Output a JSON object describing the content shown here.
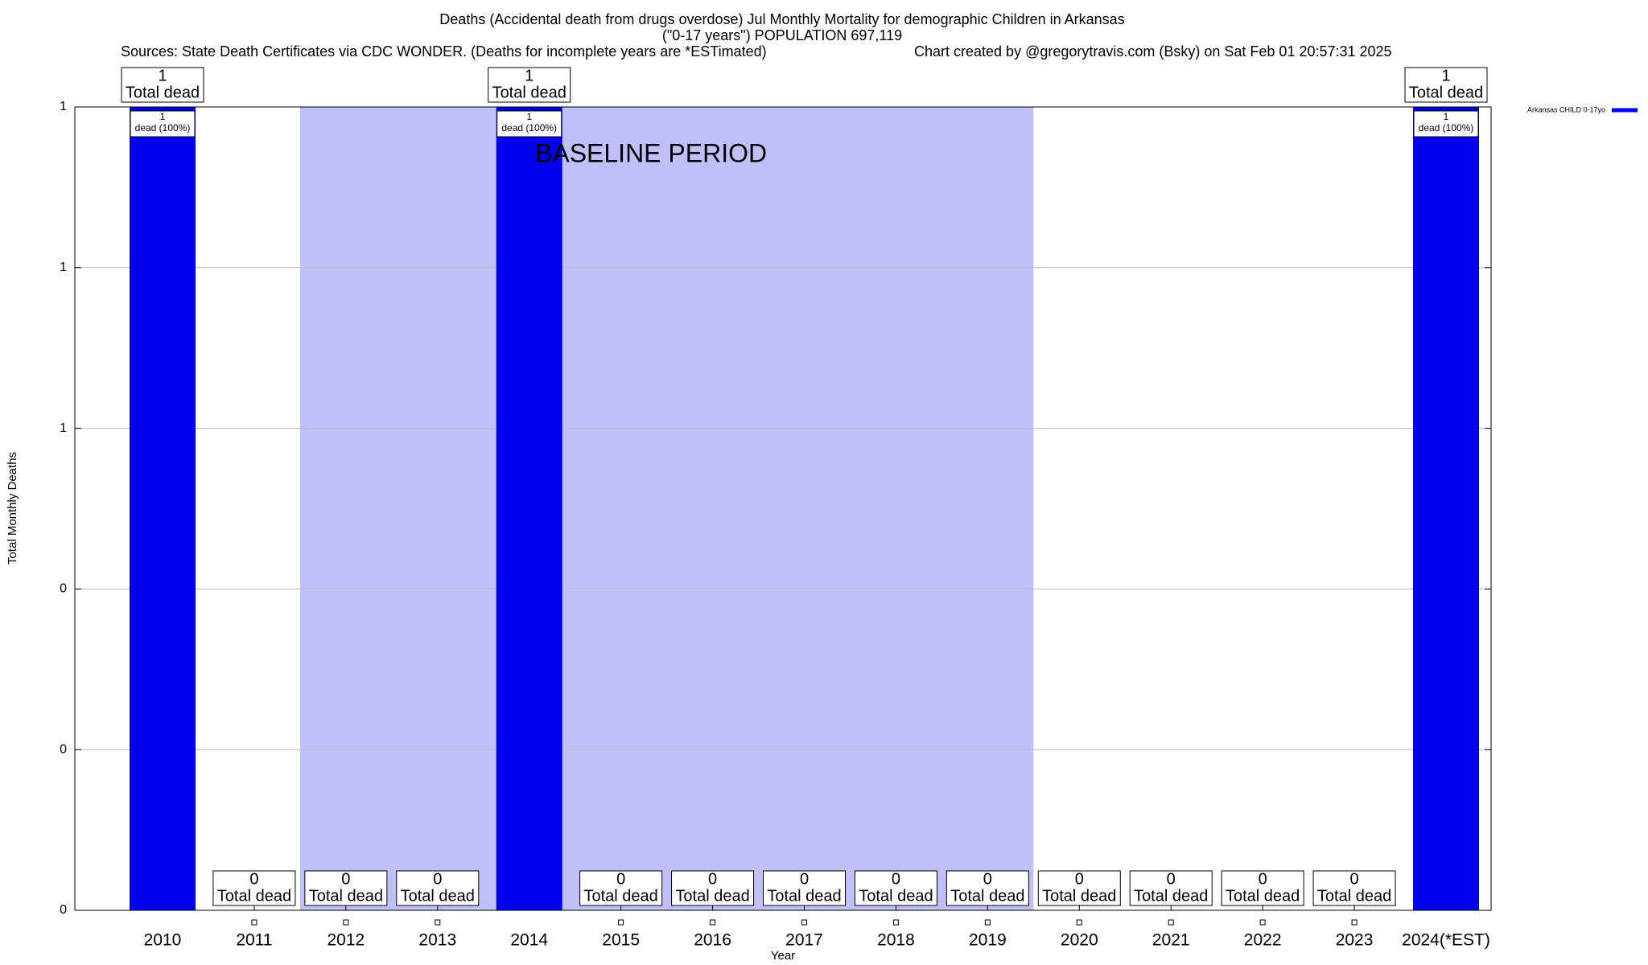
{
  "chart_data": {
    "type": "bar",
    "title": "Deaths (Accidental death from drugs overdose) Jul Monthly Mortality for demographic Children in Arkansas",
    "subtitle": "(\"0-17 years\") POPULATION 697,119",
    "source": "Sources: State Death Certificates via CDC WONDER. (Deaths for incomplete years are *ESTimated)",
    "credit": "Chart created by @gregorytravis.com (Bsky) on Sat Feb 01 20:57:31 2025",
    "x_label": "Year",
    "y_label": "Total Monthly Deaths",
    "categories": [
      "2010",
      "2011",
      "2012",
      "2013",
      "2014",
      "2015",
      "2016",
      "2017",
      "2018",
      "2019",
      "2020",
      "2021",
      "2022",
      "2023",
      "2024(*EST)"
    ],
    "series": [
      {
        "name": "Arkansas CHILD 0-17yo",
        "color": "#0000ee",
        "values": [
          1,
          0,
          0,
          0,
          1,
          0,
          0,
          0,
          0,
          0,
          0,
          0,
          0,
          0,
          1
        ],
        "total_label": "Total dead",
        "share_labels": [
          "dead (100%)",
          null,
          null,
          null,
          "dead (100%)",
          null,
          null,
          null,
          null,
          null,
          null,
          null,
          null,
          null,
          "dead (100%)"
        ]
      }
    ],
    "baseline": {
      "label": "BASELINE PERIOD",
      "start": "2012",
      "end": "2019",
      "color": "#bfbffa"
    },
    "ylim": [
      0,
      1
    ],
    "yticks": [
      0,
      {
        "value": 0.2,
        "label": "0"
      },
      {
        "value": 0.4,
        "label": "0"
      },
      {
        "value": 0.6,
        "label": "1"
      },
      {
        "value": 0.8,
        "label": "1"
      },
      1
    ],
    "grid": true,
    "legend": "top-right"
  }
}
